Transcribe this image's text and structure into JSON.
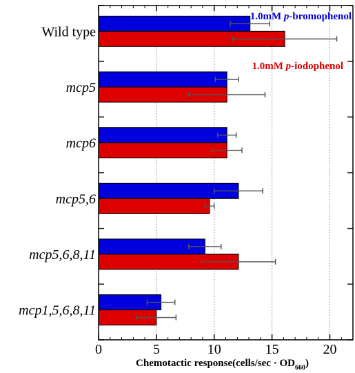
{
  "chart_data": {
    "type": "bar",
    "orientation": "horizontal",
    "categories": [
      "Wild type",
      "mcp5",
      "mcp6",
      "mcp5,6",
      "mcp5,6,8,11",
      "mcp1,5,6,8,11"
    ],
    "category_italic": [
      false,
      true,
      true,
      true,
      true,
      true
    ],
    "series": [
      {
        "name": "1.0mM p-bromophenol",
        "name_parts": [
          "1.0mM ",
          "p",
          "-bromophenol"
        ],
        "color": "#0000dd",
        "values": [
          13.1,
          11.1,
          11.1,
          12.1,
          9.2,
          5.4
        ],
        "errors": [
          1.7,
          1.0,
          0.8,
          2.1,
          1.4,
          1.2
        ]
      },
      {
        "name": "1.0mM p-iodophenol",
        "name_parts": [
          "1.0mM ",
          "p",
          "-iodophenol"
        ],
        "color": "#dd0000",
        "values": [
          16.1,
          11.1,
          11.1,
          9.6,
          12.1,
          5.0
        ],
        "errors": [
          4.5,
          3.3,
          1.3,
          0.4,
          3.2,
          1.7
        ]
      }
    ],
    "xlim": [
      0,
      22
    ],
    "xticks": [
      0,
      5,
      10,
      15,
      20
    ],
    "xlabel_main": "Chemotactic response(cells/sec · OD",
    "xlabel_sub": "660",
    "xlabel_close": ")",
    "grid": "vertical dashed",
    "legend": "top-right (blue), below first bar (red)"
  }
}
